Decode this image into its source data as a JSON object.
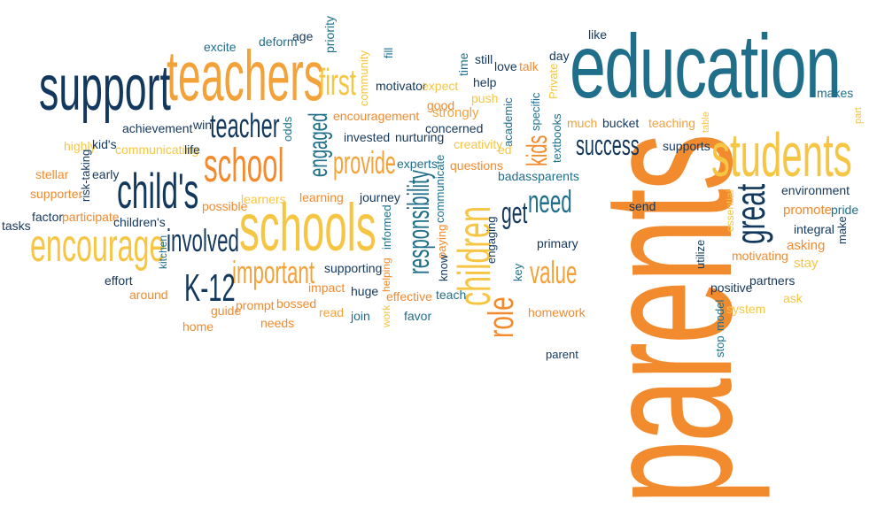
{
  "words": [
    {
      "key": "education",
      "text": "education",
      "color": "#1f6f8b"
    },
    {
      "key": "parents",
      "text": "parents",
      "color": "#f28a2e"
    },
    {
      "key": "support",
      "text": "support",
      "color": "#13385e"
    },
    {
      "key": "teachers",
      "text": "teachers",
      "color": "#f3a23a"
    },
    {
      "key": "students",
      "text": "students",
      "color": "#f6c543"
    },
    {
      "key": "schools",
      "text": "schools",
      "color": "#f6c543"
    },
    {
      "key": "encourage",
      "text": "encourage",
      "color": "#f6c543"
    },
    {
      "key": "childs",
      "text": "child's",
      "color": "#13385e"
    },
    {
      "key": "school",
      "text": "school",
      "color": "#f28a2e"
    },
    {
      "key": "children",
      "text": "children",
      "color": "#f6c543"
    },
    {
      "key": "role",
      "text": "role",
      "color": "#f28a2e"
    },
    {
      "key": "great",
      "text": "great",
      "color": "#13385e"
    },
    {
      "key": "responsibility",
      "text": "responsibility",
      "color": "#1f6f8b"
    },
    {
      "key": "involved",
      "text": "involved",
      "color": "#13385e"
    },
    {
      "key": "important",
      "text": "important",
      "color": "#f3a23a"
    },
    {
      "key": "k12",
      "text": "K-12",
      "color": "#13385e"
    },
    {
      "key": "teacher",
      "text": "teacher",
      "color": "#13385e"
    },
    {
      "key": "first",
      "text": "first",
      "color": "#f6c543"
    },
    {
      "key": "provide",
      "text": "provide",
      "color": "#f3a23a"
    },
    {
      "key": "engaged",
      "text": "engaged",
      "color": "#1f6f8b"
    },
    {
      "key": "success",
      "text": "success",
      "color": "#13385e"
    },
    {
      "key": "need",
      "text": "need",
      "color": "#1f6f8b"
    },
    {
      "key": "get",
      "text": "get",
      "color": "#13385e"
    },
    {
      "key": "value",
      "text": "value",
      "color": "#f3a23a"
    },
    {
      "key": "kids",
      "text": "kids",
      "color": "#f28a2e"
    },
    {
      "key": "like",
      "text": "like",
      "color": "#13385e"
    },
    {
      "key": "excite",
      "text": "excite",
      "color": "#1f6f8b"
    },
    {
      "key": "deform",
      "text": "deform",
      "color": "#1f6f8b"
    },
    {
      "key": "age",
      "text": "age",
      "color": "#13385e"
    },
    {
      "key": "priority",
      "text": "priority",
      "color": "#1f6f8b"
    },
    {
      "key": "community",
      "text": "community",
      "color": "#f6c543"
    },
    {
      "key": "fill",
      "text": "fill",
      "color": "#1f6f8b"
    },
    {
      "key": "motivator",
      "text": "motivator",
      "color": "#13385e"
    },
    {
      "key": "expect",
      "text": "expect",
      "color": "#f6c543"
    },
    {
      "key": "time",
      "text": "time",
      "color": "#1f6f8b"
    },
    {
      "key": "still",
      "text": "still",
      "color": "#13385e"
    },
    {
      "key": "love",
      "text": "love",
      "color": "#13385e"
    },
    {
      "key": "talk",
      "text": "talk",
      "color": "#f28a2e"
    },
    {
      "key": "day",
      "text": "day",
      "color": "#13385e"
    },
    {
      "key": "help",
      "text": "help",
      "color": "#13385e"
    },
    {
      "key": "push",
      "text": "push",
      "color": "#f6c543"
    },
    {
      "key": "private",
      "text": "Private",
      "color": "#f6c543"
    },
    {
      "key": "makes",
      "text": "makes",
      "color": "#1f6f8b"
    },
    {
      "key": "part",
      "text": "part",
      "color": "#f6c543"
    },
    {
      "key": "good",
      "text": "good",
      "color": "#f28a2e"
    },
    {
      "key": "academic",
      "text": "academic",
      "color": "#1f6f8b"
    },
    {
      "key": "specific",
      "text": "specific",
      "color": "#1f6f8b"
    },
    {
      "key": "encouragement",
      "text": "encouragement",
      "color": "#f28a2e"
    },
    {
      "key": "strongly",
      "text": "strongly",
      "color": "#f3a23a"
    },
    {
      "key": "achievement",
      "text": "achievement",
      "color": "#13385e"
    },
    {
      "key": "win",
      "text": "win",
      "color": "#13385e"
    },
    {
      "key": "odds",
      "text": "odds",
      "color": "#1f6f8b"
    },
    {
      "key": "concerned",
      "text": "concerned",
      "color": "#13385e"
    },
    {
      "key": "textbooks",
      "text": "textbooks",
      "color": "#1f6f8b"
    },
    {
      "key": "much",
      "text": "much",
      "color": "#f3a23a"
    },
    {
      "key": "bucket",
      "text": "bucket",
      "color": "#13385e"
    },
    {
      "key": "teaching",
      "text": "teaching",
      "color": "#f3a23a"
    },
    {
      "key": "table",
      "text": "table",
      "color": "#f6c543"
    },
    {
      "key": "highly",
      "text": "highly",
      "color": "#f6c543"
    },
    {
      "key": "kids2",
      "text": "kid's",
      "color": "#13385e"
    },
    {
      "key": "communicating",
      "text": "communicating",
      "color": "#f6c543"
    },
    {
      "key": "life",
      "text": "life",
      "color": "#13385e"
    },
    {
      "key": "invested",
      "text": "invested",
      "color": "#13385e"
    },
    {
      "key": "nurturing",
      "text": "nurturing",
      "color": "#13385e"
    },
    {
      "key": "creativity",
      "text": "creativity",
      "color": "#f6c543"
    },
    {
      "key": "ed",
      "text": "ed",
      "color": "#f6c543"
    },
    {
      "key": "supports",
      "text": "supports",
      "color": "#13385e"
    },
    {
      "key": "stellar",
      "text": "stellar",
      "color": "#f28a2e"
    },
    {
      "key": "early",
      "text": "early",
      "color": "#13385e"
    },
    {
      "key": "risktaking",
      "text": "risk-taking",
      "color": "#13385e"
    },
    {
      "key": "experts",
      "text": "experts",
      "color": "#1f6f8b"
    },
    {
      "key": "questions",
      "text": "questions",
      "color": "#f28a2e"
    },
    {
      "key": "badassparents",
      "text": "badassparents",
      "color": "#1f6f8b"
    },
    {
      "key": "supporter",
      "text": "supporter",
      "color": "#f28a2e"
    },
    {
      "key": "learners",
      "text": "learners",
      "color": "#f6c543"
    },
    {
      "key": "learning",
      "text": "learning",
      "color": "#f28a2e"
    },
    {
      "key": "journey",
      "text": "journey",
      "color": "#13385e"
    },
    {
      "key": "communicate",
      "text": "communicate",
      "color": "#1f6f8b"
    },
    {
      "key": "environment",
      "text": "environment",
      "color": "#13385e"
    },
    {
      "key": "tasks",
      "text": "tasks",
      "color": "#13385e"
    },
    {
      "key": "factor",
      "text": "factor",
      "color": "#13385e"
    },
    {
      "key": "participate",
      "text": "participate",
      "color": "#f28a2e"
    },
    {
      "key": "childrens",
      "text": "children's",
      "color": "#13385e"
    },
    {
      "key": "possible",
      "text": "possible",
      "color": "#f28a2e"
    },
    {
      "key": "informed",
      "text": "informed",
      "color": "#1f6f8b"
    },
    {
      "key": "paying",
      "text": "paying",
      "color": "#f28a2e"
    },
    {
      "key": "send",
      "text": "send",
      "color": "#13385e"
    },
    {
      "key": "essential",
      "text": "essential",
      "color": "#f6c543"
    },
    {
      "key": "promote",
      "text": "promote",
      "color": "#f28a2e"
    },
    {
      "key": "integral",
      "text": "integral",
      "color": "#13385e"
    },
    {
      "key": "pride",
      "text": "pride",
      "color": "#1f6f8b"
    },
    {
      "key": "make",
      "text": "make",
      "color": "#13385e"
    },
    {
      "key": "kitchen",
      "text": "kitchen",
      "color": "#1f6f8b"
    },
    {
      "key": "engaging",
      "text": "engaging",
      "color": "#13385e"
    },
    {
      "key": "primary",
      "text": "primary",
      "color": "#13385e"
    },
    {
      "key": "utilize",
      "text": "utilize",
      "color": "#13385e"
    },
    {
      "key": "motivating",
      "text": "motivating",
      "color": "#f28a2e"
    },
    {
      "key": "asking",
      "text": "asking",
      "color": "#f28a2e"
    },
    {
      "key": "stay",
      "text": "stay",
      "color": "#f6c543"
    },
    {
      "key": "effort",
      "text": "effort",
      "color": "#13385e"
    },
    {
      "key": "around",
      "text": "around",
      "color": "#f28a2e"
    },
    {
      "key": "supporting",
      "text": "supporting",
      "color": "#13385e"
    },
    {
      "key": "helping",
      "text": "helping",
      "color": "#f28a2e"
    },
    {
      "key": "know",
      "text": "know",
      "color": "#13385e"
    },
    {
      "key": "key",
      "text": "key",
      "color": "#1f6f8b"
    },
    {
      "key": "positive",
      "text": "positive",
      "color": "#13385e"
    },
    {
      "key": "partners",
      "text": "partners",
      "color": "#13385e"
    },
    {
      "key": "impact",
      "text": "impact",
      "color": "#f28a2e"
    },
    {
      "key": "huge",
      "text": "huge",
      "color": "#13385e"
    },
    {
      "key": "effective",
      "text": "effective",
      "color": "#f28a2e"
    },
    {
      "key": "teach",
      "text": "teach",
      "color": "#1f6f8b"
    },
    {
      "key": "prompt",
      "text": "prompt",
      "color": "#f28a2e"
    },
    {
      "key": "bossed",
      "text": "bossed",
      "color": "#f28a2e"
    },
    {
      "key": "guide",
      "text": "guide",
      "color": "#f28a2e"
    },
    {
      "key": "read",
      "text": "read",
      "color": "#f3a23a"
    },
    {
      "key": "join",
      "text": "join",
      "color": "#1f6f8b"
    },
    {
      "key": "work",
      "text": "work",
      "color": "#f6c543"
    },
    {
      "key": "favor",
      "text": "favor",
      "color": "#1f6f8b"
    },
    {
      "key": "homework",
      "text": "homework",
      "color": "#f28a2e"
    },
    {
      "key": "model",
      "text": "model",
      "color": "#1f6f8b"
    },
    {
      "key": "stop",
      "text": "stop",
      "color": "#1f6f8b"
    },
    {
      "key": "system",
      "text": "system",
      "color": "#f6c543"
    },
    {
      "key": "ask",
      "text": "ask",
      "color": "#f6c543"
    },
    {
      "key": "home",
      "text": "home",
      "color": "#f28a2e"
    },
    {
      "key": "needs",
      "text": "needs",
      "color": "#f28a2e"
    },
    {
      "key": "parent",
      "text": "parent",
      "color": "#13385e"
    }
  ]
}
